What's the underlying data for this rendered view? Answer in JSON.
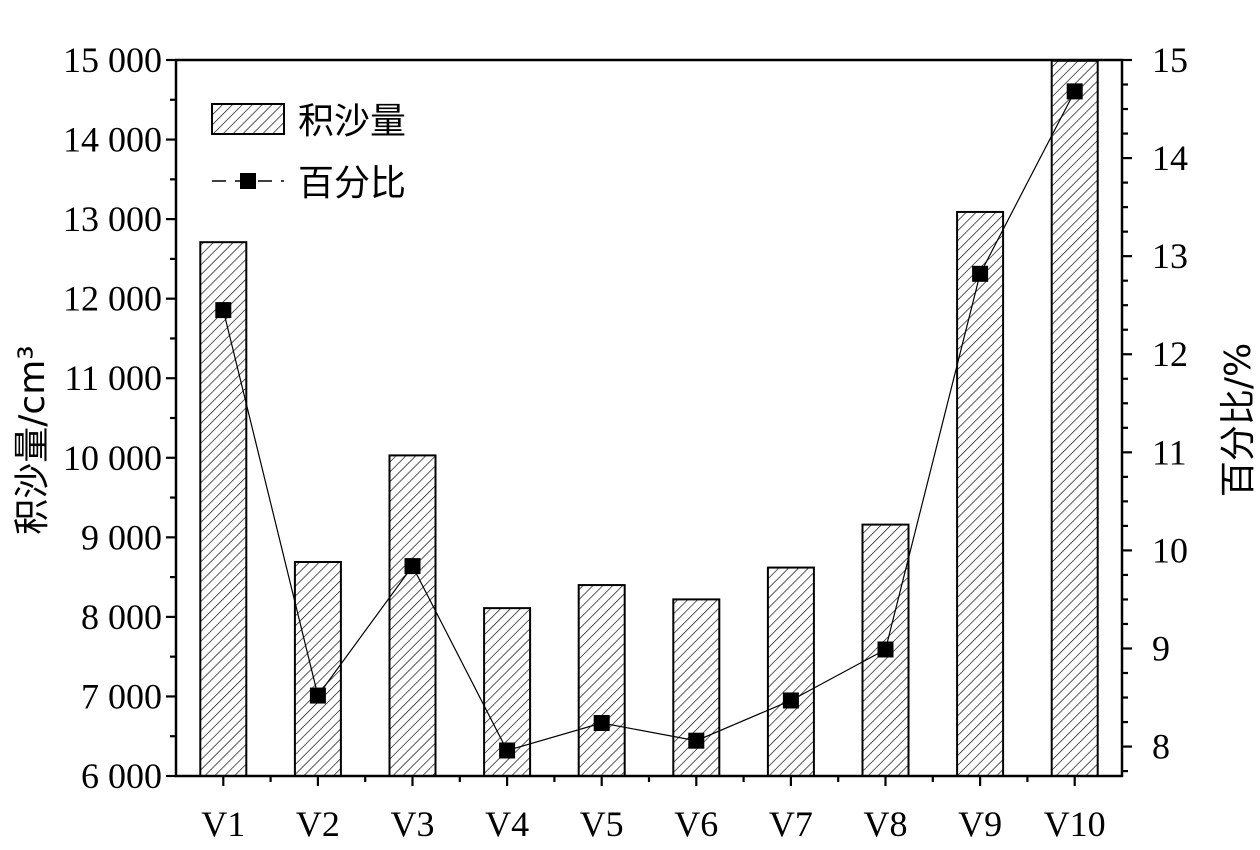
{
  "chart_data": {
    "type": "bar+line",
    "categories": [
      "V1",
      "V2",
      "V3",
      "V4",
      "V5",
      "V6",
      "V7",
      "V8",
      "V9",
      "V10"
    ],
    "series": [
      {
        "name": "积沙量",
        "type": "bar",
        "axis": "left",
        "values": [
          12710,
          8690,
          10030,
          8110,
          8400,
          8220,
          8620,
          9160,
          13090,
          14990
        ]
      },
      {
        "name": "百分比",
        "type": "line",
        "axis": "right",
        "values": [
          12.45,
          8.52,
          9.84,
          7.96,
          8.24,
          8.06,
          8.47,
          8.99,
          12.82,
          14.68
        ]
      }
    ],
    "ylabel_left": "积沙量/cm³",
    "ylabel_right": "百分比/%",
    "ylim_left": [
      6000,
      15000
    ],
    "ylim_right": [
      7.7,
      15
    ],
    "yticks_left": [
      6000,
      7000,
      8000,
      9000,
      10000,
      11000,
      12000,
      13000,
      14000,
      15000
    ],
    "yticks_left_labels": [
      "6 000",
      "7 000",
      "8 000",
      "9 000",
      "10 000",
      "11 000",
      "12 000",
      "13 000",
      "14 000",
      "15 000"
    ],
    "yticks_right": [
      8,
      9,
      10,
      11,
      12,
      13,
      14,
      15
    ],
    "yticks_right_labels": [
      "8",
      "9",
      "10",
      "11",
      "12",
      "13",
      "14",
      "15"
    ],
    "grid": false,
    "legend_position": "top-left"
  }
}
